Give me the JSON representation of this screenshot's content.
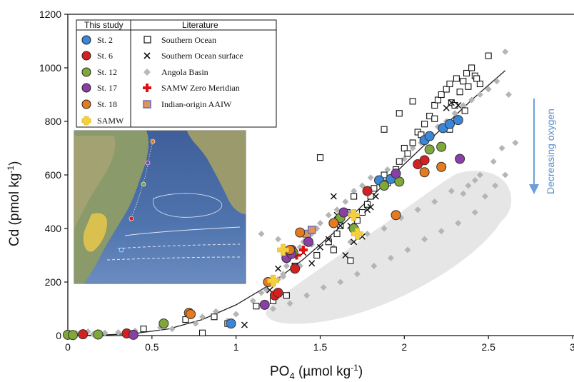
{
  "chart_data": {
    "type": "scatter",
    "xlabel_main": "PO",
    "xlabel_sub": "4",
    "xlabel_rest": " (µmol kg",
    "xlabel_sup": "-1",
    "xlabel_end": ")",
    "ylabel": "Cd (pmol kg",
    "ylabel_sup": "-1",
    "ylabel_end": ")",
    "xlim": [
      0,
      3
    ],
    "ylim": [
      0,
      1200
    ],
    "x_ticks": [
      0,
      0.5,
      1,
      1.5,
      2,
      2.5,
      3
    ],
    "x_tick_labels": [
      "0",
      "0.5",
      "1",
      "1.5",
      "2",
      "2.5",
      "3"
    ],
    "y_ticks": [
      0,
      200,
      400,
      600,
      800,
      1000,
      1200
    ],
    "y_tick_labels": [
      "0",
      "200",
      "400",
      "600",
      "800",
      "1000",
      "1200"
    ],
    "annotation": "Decreasing oxygen",
    "legend": {
      "left_header": "This study",
      "right_header": "Literature",
      "this_study": [
        {
          "label": "St. 2",
          "color": "#3a86d8"
        },
        {
          "label": "St. 6",
          "color": "#d62020"
        },
        {
          "label": "St. 12",
          "color": "#7fa83a"
        },
        {
          "label": "St. 17",
          "color": "#8a3fa6"
        },
        {
          "label": "St. 18",
          "color": "#e57a1e"
        },
        {
          "label": "SAMW",
          "color": "#f4d03f"
        }
      ],
      "literature": [
        {
          "label": "Southern Ocean",
          "marker": "open-square"
        },
        {
          "label": "Southern Ocean surface",
          "marker": "x"
        },
        {
          "label": "Angola Basin",
          "marker": "grey-diamond"
        },
        {
          "label": "SAMW Zero Meridian",
          "marker": "red-cross"
        },
        {
          "label": "Indian-origin AAIW",
          "marker": "orange-square"
        }
      ]
    },
    "series": [
      {
        "name": "St. 2",
        "marker": "circle",
        "color": "#3a86d8",
        "x": [
          0.97,
          1.85,
          1.92,
          2.12,
          2.15,
          2.23,
          2.27,
          2.32
        ],
        "y": [
          45,
          580,
          585,
          730,
          745,
          775,
          790,
          805
        ]
      },
      {
        "name": "St. 6",
        "marker": "circle",
        "color": "#d62020",
        "x": [
          0.09,
          0.35,
          1.23,
          1.25,
          1.3,
          1.33,
          1.35,
          1.78,
          2.08,
          2.12
        ],
        "y": [
          5,
          8,
          150,
          160,
          300,
          320,
          250,
          540,
          640,
          655
        ]
      },
      {
        "name": "St. 12",
        "marker": "circle",
        "color": "#7fa83a",
        "x": [
          0.0,
          0.03,
          0.18,
          0.57,
          1.3,
          1.34,
          1.62,
          1.7,
          1.88,
          1.97,
          2.15,
          2.22
        ],
        "y": [
          3,
          2,
          4,
          45,
          290,
          310,
          440,
          400,
          560,
          575,
          695,
          705
        ]
      },
      {
        "name": "St. 17",
        "marker": "circle",
        "color": "#8a3fa6",
        "x": [
          0.39,
          1.17,
          1.3,
          1.33,
          1.43,
          1.64,
          1.95,
          2.33
        ],
        "y": [
          3,
          115,
          290,
          305,
          350,
          460,
          605,
          660
        ]
      },
      {
        "name": "St. 18",
        "marker": "circle",
        "color": "#e57a1e",
        "x": [
          0.72,
          0.73,
          1.19,
          1.32,
          1.38,
          1.58,
          1.95,
          2.12,
          2.22
        ],
        "y": [
          85,
          80,
          200,
          320,
          385,
          420,
          450,
          610,
          630
        ]
      },
      {
        "name": "SAMW",
        "marker": "yellow-cross",
        "color": "#f4d03f",
        "x": [
          1.22,
          1.28,
          1.7,
          1.72
        ],
        "y": [
          205,
          320,
          450,
          380
        ]
      },
      {
        "name": "Southern Ocean",
        "marker": "open-square",
        "x": [
          0.45,
          0.7,
          0.8,
          0.87,
          0.95,
          1.12,
          1.22,
          1.3,
          1.35,
          1.48,
          1.5,
          1.55,
          1.6,
          1.62,
          1.68,
          1.72,
          1.75,
          1.78,
          1.8,
          1.82,
          1.85,
          1.88,
          1.9,
          1.95,
          1.97,
          2.0,
          2.02,
          2.05,
          2.08,
          2.1,
          2.12,
          2.15,
          2.18,
          2.2,
          2.22,
          2.25,
          2.27,
          2.28,
          2.3,
          2.31,
          2.33,
          2.35,
          2.37,
          2.38,
          2.4,
          2.42,
          2.45,
          2.5,
          2.43,
          2.36,
          2.27,
          2.18,
          1.88,
          1.97,
          2.05,
          1.58,
          1.66,
          1.7
        ],
        "y": [
          25,
          60,
          10,
          70,
          45,
          110,
          130,
          150,
          260,
          300,
          665,
          350,
          380,
          410,
          280,
          430,
          460,
          490,
          520,
          550,
          580,
          600,
          570,
          620,
          650,
          700,
          680,
          720,
          760,
          750,
          790,
          820,
          860,
          880,
          900,
          920,
          940,
          870,
          860,
          960,
          910,
          950,
          980,
          930,
          1000,
          970,
          940,
          1045,
          960,
          840,
          770,
          810,
          770,
          830,
          875,
          320,
          460,
          520
        ]
      },
      {
        "name": "Southern Ocean surface",
        "marker": "x",
        "x": [
          1.05,
          1.2,
          1.25,
          1.35,
          1.4,
          1.45,
          1.5,
          1.55,
          1.6,
          1.68,
          1.75,
          1.8,
          1.83,
          1.78,
          1.65,
          1.7,
          1.58,
          1.62,
          2.25,
          2.28,
          2.32
        ],
        "y": [
          40,
          170,
          250,
          260,
          310,
          270,
          330,
          360,
          450,
          410,
          370,
          480,
          520,
          470,
          300,
          350,
          520,
          410,
          850,
          870,
          860
        ]
      },
      {
        "name": "SAMW Zero Meridian",
        "marker": "red-cross",
        "x": [
          1.36,
          1.4
        ],
        "y": [
          300,
          320
        ]
      },
      {
        "name": "Indian-origin AAIW",
        "marker": "orange-square",
        "x": [
          1.42,
          1.45
        ],
        "y": [
          380,
          395
        ]
      },
      {
        "name": "Angola Basin",
        "marker": "grey-diamond",
        "x": [
          0.05,
          0.12,
          0.15,
          0.22,
          0.3,
          0.4,
          0.55,
          0.62,
          0.7,
          0.76,
          0.8,
          0.88,
          0.95,
          1.0,
          1.1,
          1.15,
          1.18,
          1.22,
          1.25,
          1.28,
          1.3,
          1.35,
          1.38,
          1.4,
          1.45,
          1.48,
          1.5,
          1.55,
          1.6,
          1.65,
          1.7,
          1.75,
          1.8,
          1.9,
          2.0,
          2.05,
          2.1,
          2.15,
          2.2,
          2.25,
          2.3,
          2.35,
          2.4,
          2.45,
          2.5,
          2.55,
          2.6,
          2.62,
          2.58,
          2.53,
          2.42,
          2.38,
          2.28,
          2.18,
          2.08,
          1.98,
          1.88,
          1.78,
          1.68,
          1.58,
          1.48,
          1.38,
          1.28,
          1.22,
          1.32,
          1.42,
          1.52,
          1.62,
          1.72,
          1.82,
          1.92,
          2.02,
          2.12,
          2.22,
          2.32,
          2.42,
          2.48,
          2.54,
          2.6,
          2.66,
          2.45,
          2.35,
          1.15,
          1.25,
          1.35,
          1.45
        ],
        "y": [
          8,
          15,
          5,
          10,
          12,
          18,
          30,
          25,
          60,
          45,
          70,
          90,
          55,
          80,
          130,
          160,
          170,
          190,
          210,
          230,
          260,
          300,
          330,
          350,
          380,
          400,
          420,
          450,
          470,
          500,
          540,
          560,
          590,
          620,
          660,
          700,
          720,
          750,
          780,
          800,
          830,
          860,
          880,
          900,
          920,
          950,
          1060,
          900,
          700,
          650,
          580,
          560,
          540,
          500,
          470,
          440,
          400,
          380,
          350,
          330,
          300,
          260,
          220,
          100,
          120,
          150,
          180,
          200,
          230,
          260,
          290,
          320,
          360,
          390,
          420,
          460,
          520,
          560,
          600,
          720,
          600,
          530,
          380,
          360,
          310,
          340
        ]
      }
    ],
    "fit_curve": {
      "x": [
        0,
        0.2,
        0.4,
        0.6,
        0.8,
        1.0,
        1.2,
        1.4,
        1.6,
        1.8,
        2.0,
        2.2,
        2.4,
        2.6
      ],
      "y": [
        0,
        2,
        8,
        25,
        60,
        115,
        190,
        285,
        395,
        515,
        640,
        760,
        880,
        990
      ]
    }
  }
}
